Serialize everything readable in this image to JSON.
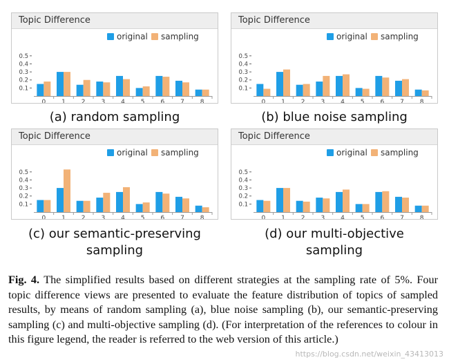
{
  "colors": {
    "original": "#1f9ee6",
    "sampling": "#f2b277",
    "header_bg": "#eeeeee"
  },
  "chart_data": [
    {
      "type": "bar",
      "title": "Topic Difference",
      "categories": [
        "0",
        "1",
        "2",
        "3",
        "4",
        "5",
        "6",
        "7",
        "8"
      ],
      "yticks": [
        "0.1",
        "0.2",
        "0.3",
        "0.4",
        "0.5"
      ],
      "ylim": [
        0,
        0.55
      ],
      "legend_position": "top-right",
      "series": [
        {
          "name": "original",
          "values": [
            0.15,
            0.3,
            0.14,
            0.18,
            0.25,
            0.1,
            0.25,
            0.19,
            0.08
          ]
        },
        {
          "name": "sampling",
          "values": [
            0.18,
            0.3,
            0.2,
            0.17,
            0.21,
            0.12,
            0.24,
            0.17,
            0.08
          ]
        }
      ],
      "caption": "(a) random sampling"
    },
    {
      "type": "bar",
      "title": "Topic Difference",
      "categories": [
        "0",
        "1",
        "2",
        "3",
        "4",
        "5",
        "6",
        "7",
        "8"
      ],
      "yticks": [
        "0.1",
        "0.2",
        "0.3",
        "0.4",
        "0.5"
      ],
      "ylim": [
        0,
        0.55
      ],
      "legend_position": "top-right",
      "series": [
        {
          "name": "original",
          "values": [
            0.15,
            0.3,
            0.14,
            0.18,
            0.25,
            0.1,
            0.25,
            0.19,
            0.08
          ]
        },
        {
          "name": "sampling",
          "values": [
            0.09,
            0.33,
            0.15,
            0.25,
            0.27,
            0.09,
            0.23,
            0.21,
            0.07
          ]
        }
      ],
      "caption": "(b) blue noise sampling"
    },
    {
      "type": "bar",
      "title": "Topic Difference",
      "categories": [
        "0",
        "1",
        "2",
        "3",
        "4",
        "5",
        "6",
        "7",
        "8"
      ],
      "yticks": [
        "0.1",
        "0.2",
        "0.3",
        "0.4",
        "0.5"
      ],
      "ylim": [
        0,
        0.55
      ],
      "legend_position": "top-right",
      "series": [
        {
          "name": "original",
          "values": [
            0.15,
            0.3,
            0.14,
            0.18,
            0.25,
            0.1,
            0.25,
            0.19,
            0.08
          ]
        },
        {
          "name": "sampling",
          "values": [
            0.15,
            0.53,
            0.14,
            0.24,
            0.31,
            0.12,
            0.23,
            0.17,
            0.06
          ]
        }
      ],
      "caption": "(c) our semantic-preserving sampling"
    },
    {
      "type": "bar",
      "title": "Topic Difference",
      "categories": [
        "0",
        "1",
        "2",
        "3",
        "4",
        "5",
        "6",
        "7",
        "8"
      ],
      "yticks": [
        "0.1",
        "0.2",
        "0.3",
        "0.4",
        "0.5"
      ],
      "ylim": [
        0,
        0.55
      ],
      "legend_position": "top-right",
      "series": [
        {
          "name": "original",
          "values": [
            0.15,
            0.3,
            0.14,
            0.18,
            0.25,
            0.1,
            0.25,
            0.19,
            0.08
          ]
        },
        {
          "name": "sampling",
          "values": [
            0.14,
            0.3,
            0.13,
            0.17,
            0.28,
            0.1,
            0.26,
            0.18,
            0.08
          ]
        }
      ],
      "caption": "(d) our multi-objective sampling"
    }
  ],
  "figure_caption": {
    "label": "Fig. 4.",
    "text": " The simplified results based on different strategies at the sampling rate of 5%. Four topic difference views are presented to evaluate the feature distribution of topics of sampled results, by means of random sampling (a), blue noise sampling (b), our semantic-preserving sampling (c) and multi-objective sampling (d). (For interpretation of the references to colour in this figure legend, the reader is referred to the web version of this article.)"
  },
  "watermark": "https://blog.csdn.net/weixin_43413013"
}
